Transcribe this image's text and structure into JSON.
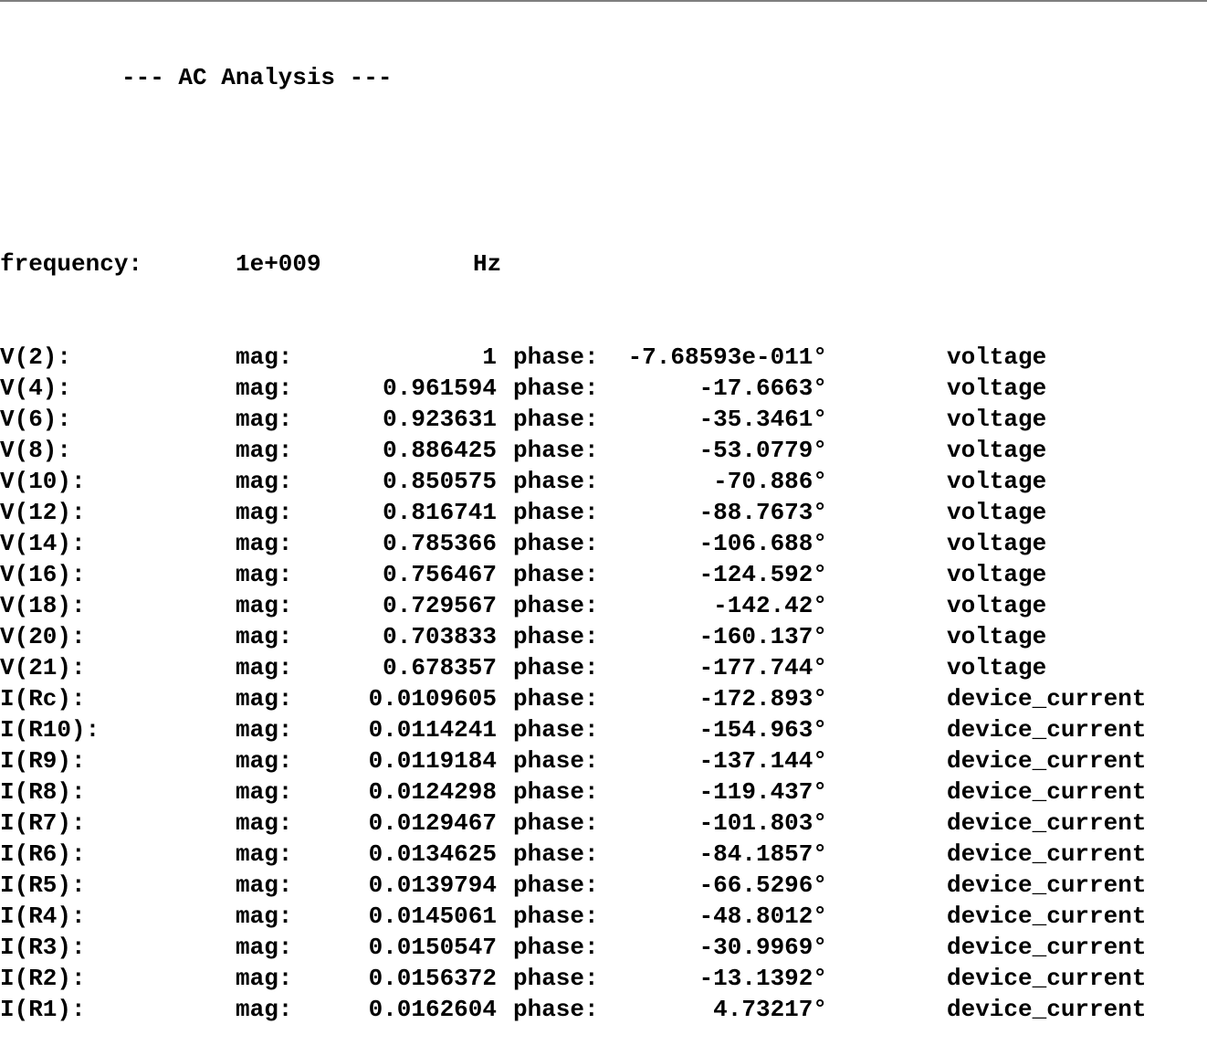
{
  "header": {
    "title": "--- AC Analysis ---"
  },
  "frequency": {
    "label": "frequency:",
    "value": "1e+009",
    "unit": "Hz"
  },
  "labels": {
    "mag": "mag:",
    "phase": "phase:"
  },
  "rows": [
    {
      "name": "V(2):",
      "mag": "1",
      "phase": "-7.68593e-011°",
      "type": "voltage"
    },
    {
      "name": "V(4):",
      "mag": "0.961594",
      "phase": "-17.6663°",
      "type": "voltage"
    },
    {
      "name": "V(6):",
      "mag": "0.923631",
      "phase": "-35.3461°",
      "type": "voltage"
    },
    {
      "name": "V(8):",
      "mag": "0.886425",
      "phase": "-53.0779°",
      "type": "voltage"
    },
    {
      "name": "V(10):",
      "mag": "0.850575",
      "phase": "-70.886°",
      "type": "voltage"
    },
    {
      "name": "V(12):",
      "mag": "0.816741",
      "phase": "-88.7673°",
      "type": "voltage"
    },
    {
      "name": "V(14):",
      "mag": "0.785366",
      "phase": "-106.688°",
      "type": "voltage"
    },
    {
      "name": "V(16):",
      "mag": "0.756467",
      "phase": "-124.592°",
      "type": "voltage"
    },
    {
      "name": "V(18):",
      "mag": "0.729567",
      "phase": "-142.42°",
      "type": "voltage"
    },
    {
      "name": "V(20):",
      "mag": "0.703833",
      "phase": "-160.137°",
      "type": "voltage"
    },
    {
      "name": "V(21):",
      "mag": "0.678357",
      "phase": "-177.744°",
      "type": "voltage"
    },
    {
      "name": "I(Rc):",
      "mag": "0.0109605",
      "phase": "-172.893°",
      "type": "device_current"
    },
    {
      "name": "I(R10):",
      "mag": "0.0114241",
      "phase": "-154.963°",
      "type": "device_current"
    },
    {
      "name": "I(R9):",
      "mag": "0.0119184",
      "phase": "-137.144°",
      "type": "device_current"
    },
    {
      "name": "I(R8):",
      "mag": "0.0124298",
      "phase": "-119.437°",
      "type": "device_current"
    },
    {
      "name": "I(R7):",
      "mag": "0.0129467",
      "phase": "-101.803°",
      "type": "device_current"
    },
    {
      "name": "I(R6):",
      "mag": "0.0134625",
      "phase": "-84.1857°",
      "type": "device_current"
    },
    {
      "name": "I(R5):",
      "mag": "0.0139794",
      "phase": "-66.5296°",
      "type": "device_current"
    },
    {
      "name": "I(R4):",
      "mag": "0.0145061",
      "phase": "-48.8012°",
      "type": "device_current"
    },
    {
      "name": "I(R3):",
      "mag": "0.0150547",
      "phase": "-30.9969°",
      "type": "device_current"
    },
    {
      "name": "I(R2):",
      "mag": "0.0156372",
      "phase": "-13.1392°",
      "type": "device_current"
    },
    {
      "name": "I(R1):",
      "mag": "0.0162604",
      "phase": "4.73217°",
      "type": "device_current"
    }
  ]
}
